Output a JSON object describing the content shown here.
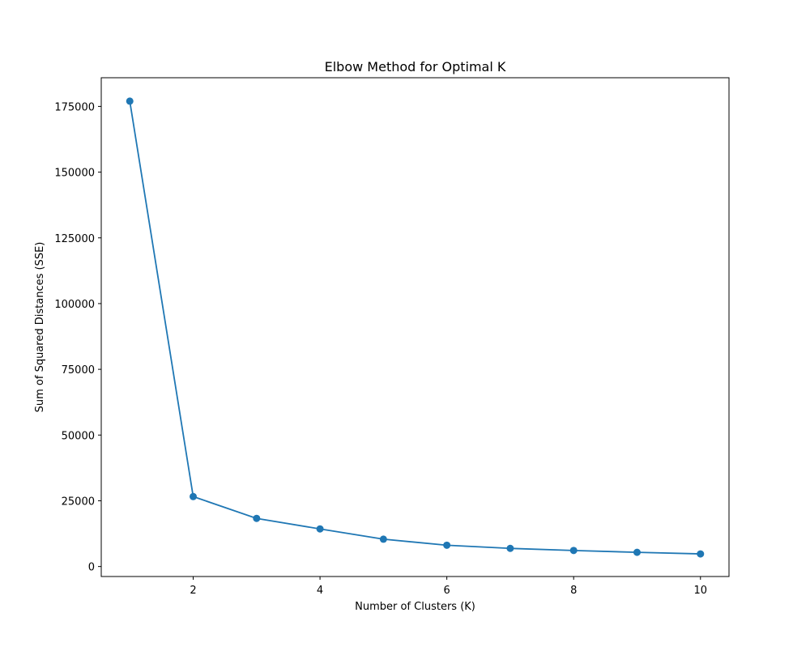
{
  "chart_data": {
    "type": "line",
    "title": "Elbow Method for Optimal K",
    "xlabel": "Number of Clusters (K)",
    "ylabel": "Sum of Squared Distances (SSE)",
    "x": [
      1,
      2,
      3,
      4,
      5,
      6,
      7,
      8,
      9,
      10
    ],
    "series": [
      {
        "values": [
          177000,
          26600,
          18300,
          14300,
          10400,
          8100,
          6900,
          6100,
          5400,
          4800
        ],
        "color": "#1f77b4",
        "marker": "circle"
      }
    ],
    "xlim": [
      0.55,
      10.45
    ],
    "ylim": [
      -3800,
      185900
    ],
    "xticks": [
      2,
      4,
      6,
      8,
      10
    ],
    "yticks": [
      0,
      25000,
      50000,
      75000,
      100000,
      125000,
      150000,
      175000
    ],
    "grid": false,
    "legend": "none"
  }
}
